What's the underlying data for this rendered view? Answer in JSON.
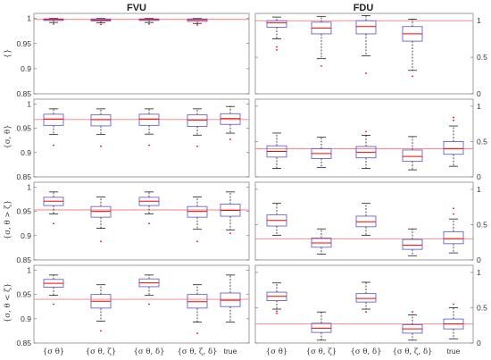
{
  "figure": {
    "column_titles": [
      "FVU",
      "FDU"
    ],
    "row_labels": [
      "{}",
      "{σ, θ}",
      "{σ, θ > ζ}",
      "{σ, θ < ζ}"
    ],
    "x_tick_labels": [
      "{σ θ}",
      "{σ θ, ζ}",
      "{σ θ, δ}",
      "{σ θ, ζ, δ}",
      "true"
    ],
    "colors": {
      "box": "#6b63c9",
      "median": "#ff0000",
      "reference": "#f08080",
      "whisker": "#000000",
      "outlier": "#ff0000",
      "frame": "#888888"
    }
  },
  "chart_data": [
    {
      "type": "box",
      "column": "FVU",
      "row": "{}",
      "ylim": [
        0.85,
        1.01
      ],
      "yticks": [
        0.85,
        0.9,
        0.95,
        1
      ],
      "ytick_labels": [
        "0.85",
        "0.9",
        "0.95",
        "1"
      ],
      "reference": 0.998,
      "boxes": [
        {
          "category": "{σ θ}",
          "min": 0.992,
          "q1": 0.996,
          "median": 0.998,
          "q3": 0.999,
          "max": 1.0,
          "outliers": [
            0.989
          ]
        },
        {
          "category": "{σ θ, ζ}",
          "min": 0.991,
          "q1": 0.995,
          "median": 0.997,
          "q3": 0.999,
          "max": 1.0,
          "outliers": [
            0.988
          ]
        },
        {
          "category": "{σ θ, δ}",
          "min": 0.992,
          "q1": 0.996,
          "median": 0.998,
          "q3": 0.999,
          "max": 1.0,
          "outliers": [
            0.989
          ]
        },
        {
          "category": "{σ θ, ζ, δ}",
          "min": 0.99,
          "q1": 0.994,
          "median": 0.997,
          "q3": 0.999,
          "max": 1.0,
          "outliers": [
            0.987
          ]
        }
      ]
    },
    {
      "type": "box",
      "column": "FDU",
      "row": "{}",
      "ylim": [
        0,
        1.1
      ],
      "yticks": [
        0,
        0.5,
        1
      ],
      "ytick_labels": [
        "0",
        "0.5",
        "1"
      ],
      "reference": 1.0,
      "boxes": [
        {
          "category": "{σ θ}",
          "min": 0.75,
          "q1": 0.91,
          "median": 0.97,
          "q3": 1.0,
          "max": 1.05,
          "outliers": [
            0.6,
            0.64
          ]
        },
        {
          "category": "{σ θ, ζ}",
          "min": 0.48,
          "q1": 0.82,
          "median": 0.9,
          "q3": 0.98,
          "max": 1.06,
          "outliers": [
            0.38
          ]
        },
        {
          "category": "{σ θ, δ}",
          "min": 0.52,
          "q1": 0.82,
          "median": 0.92,
          "q3": 1.0,
          "max": 1.07,
          "outliers": [
            0.28
          ]
        },
        {
          "category": "{σ θ, ζ, δ}",
          "min": 0.32,
          "q1": 0.72,
          "median": 0.82,
          "q3": 0.92,
          "max": 1.02,
          "outliers": [
            0.24
          ]
        }
      ]
    },
    {
      "type": "box",
      "column": "FVU",
      "row": "{σ, θ}",
      "ylim": [
        0.85,
        1.01
      ],
      "yticks": [
        0.85,
        0.9,
        0.95,
        1
      ],
      "ytick_labels": [
        "0.85",
        "0.9",
        "0.95",
        "1"
      ],
      "reference": 0.968,
      "boxes": [
        {
          "category": "{σ θ}",
          "min": 0.937,
          "q1": 0.956,
          "median": 0.969,
          "q3": 0.979,
          "max": 0.99,
          "outliers": [
            0.915
          ]
        },
        {
          "category": "{σ θ, ζ}",
          "min": 0.937,
          "q1": 0.955,
          "median": 0.968,
          "q3": 0.978,
          "max": 0.99,
          "outliers": [
            0.913
          ]
        },
        {
          "category": "{σ θ, δ}",
          "min": 0.938,
          "q1": 0.956,
          "median": 0.969,
          "q3": 0.979,
          "max": 0.99,
          "outliers": [
            0.915
          ]
        },
        {
          "category": "{σ θ, ζ, δ}",
          "min": 0.936,
          "q1": 0.954,
          "median": 0.967,
          "q3": 0.978,
          "max": 0.99,
          "outliers": [
            0.913
          ]
        },
        {
          "category": "true",
          "min": 0.94,
          "q1": 0.958,
          "median": 0.97,
          "q3": 0.98,
          "max": 0.995,
          "outliers": [
            0.927
          ]
        }
      ]
    },
    {
      "type": "box",
      "column": "FDU",
      "row": "{σ, θ}",
      "ylim": [
        0,
        1.1
      ],
      "yticks": [
        0,
        0.5,
        1
      ],
      "ytick_labels": [
        "0",
        "0.5",
        "1"
      ],
      "reference": 0.4,
      "boxes": [
        {
          "category": "{σ θ}",
          "min": 0.12,
          "q1": 0.28,
          "median": 0.36,
          "q3": 0.44,
          "max": 0.62,
          "outliers": []
        },
        {
          "category": "{σ θ, ζ}",
          "min": 0.13,
          "q1": 0.26,
          "median": 0.33,
          "q3": 0.4,
          "max": 0.56,
          "outliers": []
        },
        {
          "category": "{σ θ, δ}",
          "min": 0.12,
          "q1": 0.27,
          "median": 0.35,
          "q3": 0.43,
          "max": 0.59,
          "outliers": [
            0.64
          ]
        },
        {
          "category": "{σ θ, ζ, δ}",
          "min": 0.1,
          "q1": 0.22,
          "median": 0.29,
          "q3": 0.38,
          "max": 0.57,
          "outliers": []
        },
        {
          "category": "true",
          "min": 0.15,
          "q1": 0.32,
          "median": 0.4,
          "q3": 0.5,
          "max": 0.72,
          "outliers": [
            0.8,
            0.84
          ]
        }
      ]
    },
    {
      "type": "box",
      "column": "FVU",
      "row": "{σ, θ > ζ}",
      "ylim": [
        0.85,
        1.01
      ],
      "yticks": [
        0.85,
        0.9,
        0.95,
        1
      ],
      "ytick_labels": [
        "0.85",
        "0.9",
        "0.95",
        "1"
      ],
      "reference": 0.953,
      "boxes": [
        {
          "category": "{σ θ}",
          "min": 0.945,
          "q1": 0.962,
          "median": 0.971,
          "q3": 0.979,
          "max": 0.99,
          "outliers": [
            0.925
          ]
        },
        {
          "category": "{σ θ, ζ}",
          "min": 0.915,
          "q1": 0.938,
          "median": 0.95,
          "q3": 0.96,
          "max": 0.98,
          "outliers": [
            0.888
          ]
        },
        {
          "category": "{σ θ, δ}",
          "min": 0.945,
          "q1": 0.962,
          "median": 0.971,
          "q3": 0.979,
          "max": 0.99,
          "outliers": [
            0.925
          ]
        },
        {
          "category": "{σ θ, ζ, δ}",
          "min": 0.913,
          "q1": 0.938,
          "median": 0.95,
          "q3": 0.96,
          "max": 0.98,
          "outliers": [
            0.888
          ]
        },
        {
          "category": "true",
          "min": 0.912,
          "q1": 0.94,
          "median": 0.952,
          "q3": 0.965,
          "max": 0.99,
          "outliers": [
            0.905
          ]
        }
      ]
    },
    {
      "type": "box",
      "column": "FDU",
      "row": "{σ, θ > ζ}",
      "ylim": [
        0,
        1.1
      ],
      "yticks": [
        0,
        0.5,
        1
      ],
      "ytick_labels": [
        "0",
        "0.5",
        "1"
      ],
      "reference": 0.3,
      "boxes": [
        {
          "category": "{σ θ}",
          "min": 0.35,
          "q1": 0.48,
          "median": 0.56,
          "q3": 0.64,
          "max": 0.8,
          "outliers": []
        },
        {
          "category": "{σ θ, ζ}",
          "min": 0.08,
          "q1": 0.18,
          "median": 0.24,
          "q3": 0.31,
          "max": 0.44,
          "outliers": []
        },
        {
          "category": "{σ θ, δ}",
          "min": 0.35,
          "q1": 0.47,
          "median": 0.54,
          "q3": 0.62,
          "max": 0.8,
          "outliers": []
        },
        {
          "category": "{σ θ, ζ, δ}",
          "min": 0.06,
          "q1": 0.15,
          "median": 0.21,
          "q3": 0.29,
          "max": 0.44,
          "outliers": []
        },
        {
          "category": "true",
          "min": 0.1,
          "q1": 0.23,
          "median": 0.3,
          "q3": 0.4,
          "max": 0.58,
          "outliers": [
            0.65,
            0.73
          ]
        }
      ]
    },
    {
      "type": "box",
      "column": "FVU",
      "row": "{σ, θ < ζ}",
      "ylim": [
        0.85,
        1.01
      ],
      "yticks": [
        0.85,
        0.9,
        0.95,
        1
      ],
      "ytick_labels": [
        "0.85",
        "0.9",
        "0.95",
        "1"
      ],
      "reference": 0.94,
      "boxes": [
        {
          "category": "{σ θ}",
          "min": 0.948,
          "q1": 0.965,
          "median": 0.973,
          "q3": 0.981,
          "max": 0.99,
          "outliers": [
            0.93
          ]
        },
        {
          "category": "{σ θ, ζ}",
          "min": 0.895,
          "q1": 0.922,
          "median": 0.936,
          "q3": 0.95,
          "max": 0.97,
          "outliers": [
            0.875
          ]
        },
        {
          "category": "{σ θ, δ}",
          "min": 0.948,
          "q1": 0.966,
          "median": 0.974,
          "q3": 0.982,
          "max": 0.99,
          "outliers": [
            0.93
          ]
        },
        {
          "category": "{σ θ, ζ, δ}",
          "min": 0.893,
          "q1": 0.922,
          "median": 0.935,
          "q3": 0.95,
          "max": 0.97,
          "outliers": [
            0.87
          ]
        },
        {
          "category": "true",
          "min": 0.893,
          "q1": 0.925,
          "median": 0.938,
          "q3": 0.953,
          "max": 0.99,
          "outliers": []
        }
      ]
    },
    {
      "type": "box",
      "column": "FDU",
      "row": "{σ, θ < ζ}",
      "ylim": [
        0,
        1.1
      ],
      "yticks": [
        0,
        0.5,
        1
      ],
      "ytick_labels": [
        "0",
        "0.5",
        "1"
      ],
      "reference": 0.27,
      "boxes": [
        {
          "category": "{σ θ}",
          "min": 0.48,
          "q1": 0.6,
          "median": 0.66,
          "q3": 0.72,
          "max": 0.85,
          "outliers": [
            0.42,
            0.45
          ]
        },
        {
          "category": "{σ θ, ζ}",
          "min": 0.04,
          "q1": 0.15,
          "median": 0.21,
          "q3": 0.28,
          "max": 0.44,
          "outliers": []
        },
        {
          "category": "{σ θ, δ}",
          "min": 0.48,
          "q1": 0.58,
          "median": 0.63,
          "q3": 0.7,
          "max": 0.86,
          "outliers": [
            0.44
          ]
        },
        {
          "category": "{σ θ, ζ, δ}",
          "min": 0.04,
          "q1": 0.14,
          "median": 0.2,
          "q3": 0.26,
          "max": 0.4,
          "outliers": [
            0.44
          ]
        },
        {
          "category": "true",
          "min": 0.06,
          "q1": 0.2,
          "median": 0.27,
          "q3": 0.34,
          "max": 0.5,
          "outliers": [
            0.55
          ]
        }
      ]
    }
  ]
}
